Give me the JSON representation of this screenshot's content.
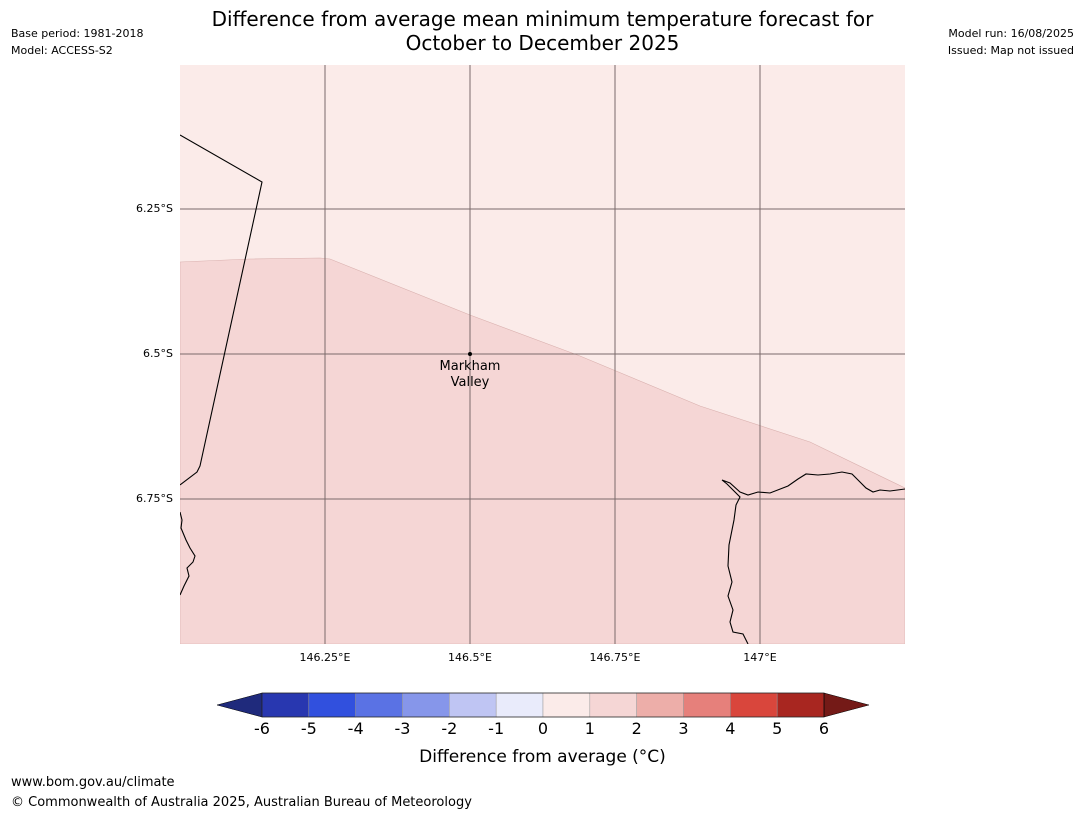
{
  "title": {
    "line1": "Difference from average mean minimum temperature forecast for",
    "line2": "October to December 2025"
  },
  "meta_left": {
    "base_period": "Base period: 1981-2018",
    "model": "Model: ACCESS-S2"
  },
  "meta_right": {
    "model_run": "Model run: 16/08/2025",
    "issued": "Issued: Map not issued"
  },
  "map": {
    "lat_labels": [
      "6.25°S",
      "6.5°S",
      "6.75°S"
    ],
    "lon_labels": [
      "146.25°E",
      "146.5°E",
      "146.75°E",
      "147°E"
    ],
    "place": {
      "name_line1": "Markham",
      "name_line2": "Valley",
      "lon": 146.5,
      "lat": -6.5
    },
    "regions": [
      {
        "range": "0 to 1",
        "color": "#fbebe9"
      },
      {
        "range": "1 to 2",
        "color": "#f5d6d5"
      }
    ]
  },
  "colorbar": {
    "ticks": [
      "-6",
      "-5",
      "-4",
      "-3",
      "-2",
      "-1",
      "0",
      "1",
      "2",
      "3",
      "4",
      "5",
      "6"
    ],
    "colors": [
      "#1f2a7c",
      "#2837b0",
      "#3150de",
      "#5a72e4",
      "#8696ea",
      "#bfc5f3",
      "#e9ebfb",
      "#fbebe9",
      "#f5d6d5",
      "#edaea9",
      "#e6807b",
      "#d9463c",
      "#a82620",
      "#741a17"
    ],
    "label": "Difference from average (°C)"
  },
  "footer": {
    "url": "www.bom.gov.au/climate",
    "copyright": "© Commonwealth of Australia 2025, Australian Bureau of Meteorology"
  }
}
